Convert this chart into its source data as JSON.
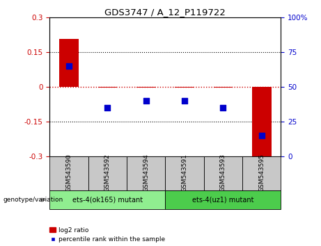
{
  "title": "GDS3747 / A_12_P119722",
  "samples": [
    "GSM543590",
    "GSM543592",
    "GSM543594",
    "GSM543591",
    "GSM543593",
    "GSM543595"
  ],
  "log2_ratio": [
    0.205,
    -0.003,
    -0.003,
    -0.003,
    -0.003,
    -0.305
  ],
  "percentile_rank": [
    65,
    35,
    40,
    40,
    35,
    15
  ],
  "ylim_left": [
    -0.3,
    0.3
  ],
  "ylim_right": [
    0,
    100
  ],
  "yticks_left": [
    -0.3,
    -0.15,
    0,
    0.15,
    0.3
  ],
  "yticks_right": [
    0,
    25,
    50,
    75,
    100
  ],
  "ytick_labels_left": [
    "-0.3",
    "-0.15",
    "0",
    "0.15",
    "0.3"
  ],
  "ytick_labels_right": [
    "0",
    "25",
    "50",
    "75",
    "100%"
  ],
  "bar_color": "#cc0000",
  "dot_color": "#0000cc",
  "hline_color": "#cc0000",
  "gridline_color": "#000000",
  "gridline_values": [
    -0.15,
    0.15
  ],
  "plot_bg_color": "#ffffff",
  "sample_bg_color": "#c8c8c8",
  "group1_label": "ets-4(ok165) mutant",
  "group1_samples": [
    0,
    1,
    2
  ],
  "group1_color": "#90ee90",
  "group2_label": "ets-4(uz1) mutant",
  "group2_samples": [
    3,
    4,
    5
  ],
  "group2_color": "#4ccc4c",
  "genotype_label": "genotype/variation",
  "legend_items": [
    "log2 ratio",
    "percentile rank within the sample"
  ],
  "bar_width": 0.5,
  "dot_size": 40,
  "left_label_color": "#cc0000",
  "right_label_color": "#0000cc"
}
